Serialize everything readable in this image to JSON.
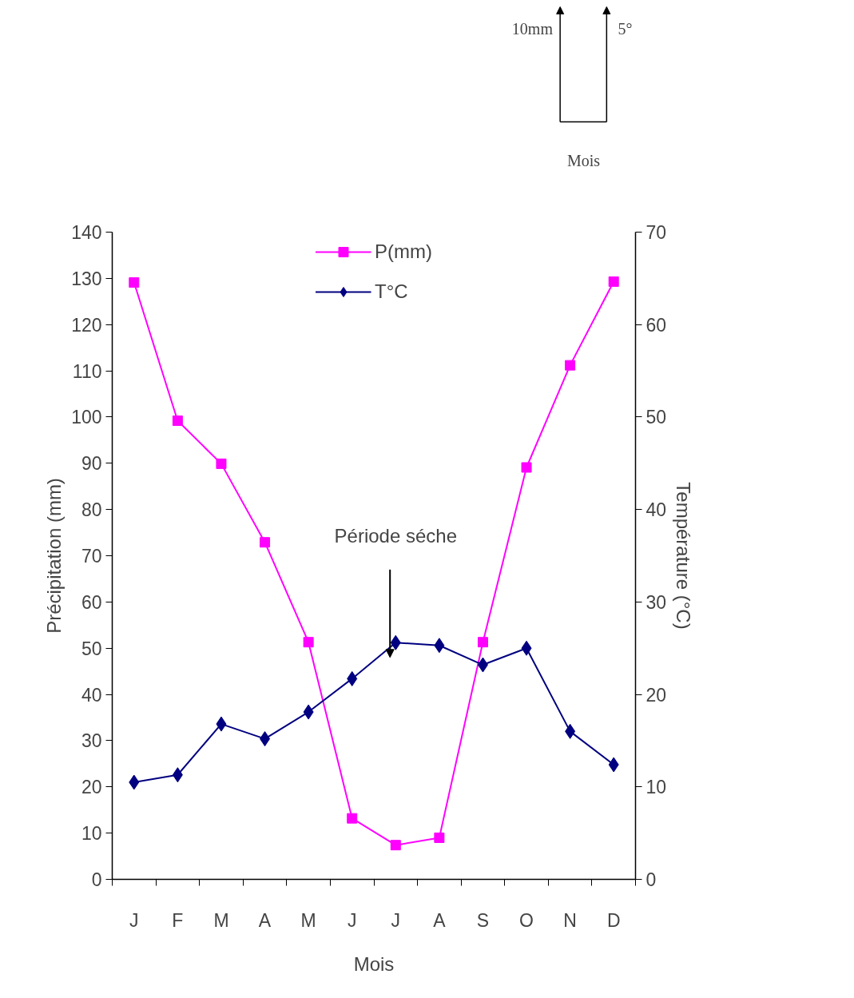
{
  "chart_data": {
    "type": "line",
    "categories": [
      "J",
      "F",
      "M",
      "A",
      "M",
      "J",
      "J",
      "A",
      "S",
      "O",
      "N",
      "D"
    ],
    "xlabel": "Mois",
    "ylabel": "Précipitation (mm)",
    "y2label": "Température (°C)",
    "ylim": [
      0,
      140
    ],
    "yticks": [
      0,
      10,
      20,
      30,
      40,
      50,
      60,
      70,
      80,
      90,
      100,
      110,
      120,
      130,
      140
    ],
    "y2lim": [
      0,
      70
    ],
    "y2ticks": [
      0,
      10,
      20,
      30,
      40,
      50,
      60,
      70
    ],
    "grid": false,
    "legend": "top",
    "annotations": [
      "Période séche",
      "10mm",
      "5°",
      "Mois"
    ],
    "series": [
      {
        "name": "P(mm)",
        "color": "#ff00ff",
        "marker": "square",
        "values": [
          129.1,
          99.2,
          89.9,
          72.9,
          51.3,
          13.2,
          7.4,
          9.0,
          51.3,
          89.1,
          111.2,
          129.3
        ]
      },
      {
        "name": "T°C",
        "color": "#000080",
        "marker": "diamond",
        "axis": "y2",
        "values": [
          10.5,
          11.3,
          16.8,
          15.2,
          18.1,
          21.7,
          25.6,
          25.3,
          23.2,
          25.0,
          16.0,
          12.4
        ]
      }
    ]
  }
}
